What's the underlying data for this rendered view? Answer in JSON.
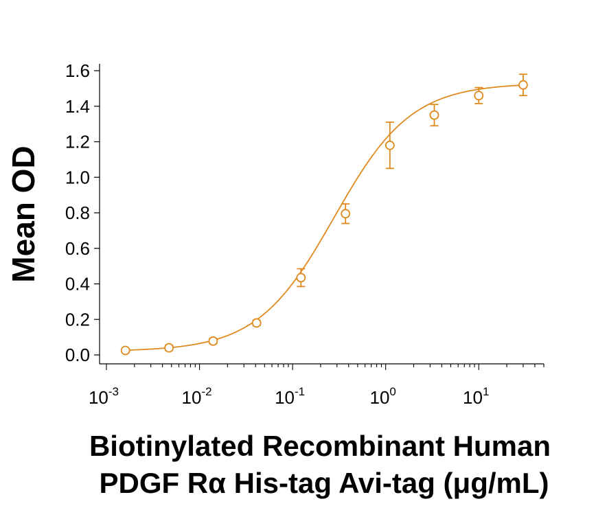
{
  "chart_data": {
    "type": "scatter",
    "xscale": "log",
    "xlabel_line1": "Biotinylated Recombinant Human",
    "xlabel_line2": "PDGF Rα His-tag Avi-tag (μg/mL)",
    "ylabel": "Mean OD",
    "xlim": [
      0.001,
      50
    ],
    "ylim": [
      0.0,
      1.6
    ],
    "yticks": [
      "0.0",
      "0.2",
      "0.4",
      "0.6",
      "0.8",
      "1.0",
      "1.2",
      "1.4",
      "1.6"
    ],
    "xticks": [
      {
        "base": "10",
        "exp": "-3"
      },
      {
        "base": "10",
        "exp": "-2"
      },
      {
        "base": "10",
        "exp": "-1"
      },
      {
        "base": "10",
        "exp": "0"
      },
      {
        "base": "10",
        "exp": "1"
      }
    ],
    "color": "#E08A1E",
    "grid": false,
    "series": [
      {
        "x": [
          0.0016,
          0.0047,
          0.014,
          0.041,
          0.123,
          0.37,
          1.11,
          3.33,
          10,
          30
        ],
        "y": [
          0.025,
          0.04,
          0.078,
          0.18,
          0.435,
          0.795,
          1.18,
          1.35,
          1.46,
          1.52
        ],
        "err": [
          0.01,
          0.015,
          0.015,
          0.015,
          0.05,
          0.055,
          0.13,
          0.06,
          0.045,
          0.06
        ],
        "fit": "4PL"
      }
    ]
  }
}
